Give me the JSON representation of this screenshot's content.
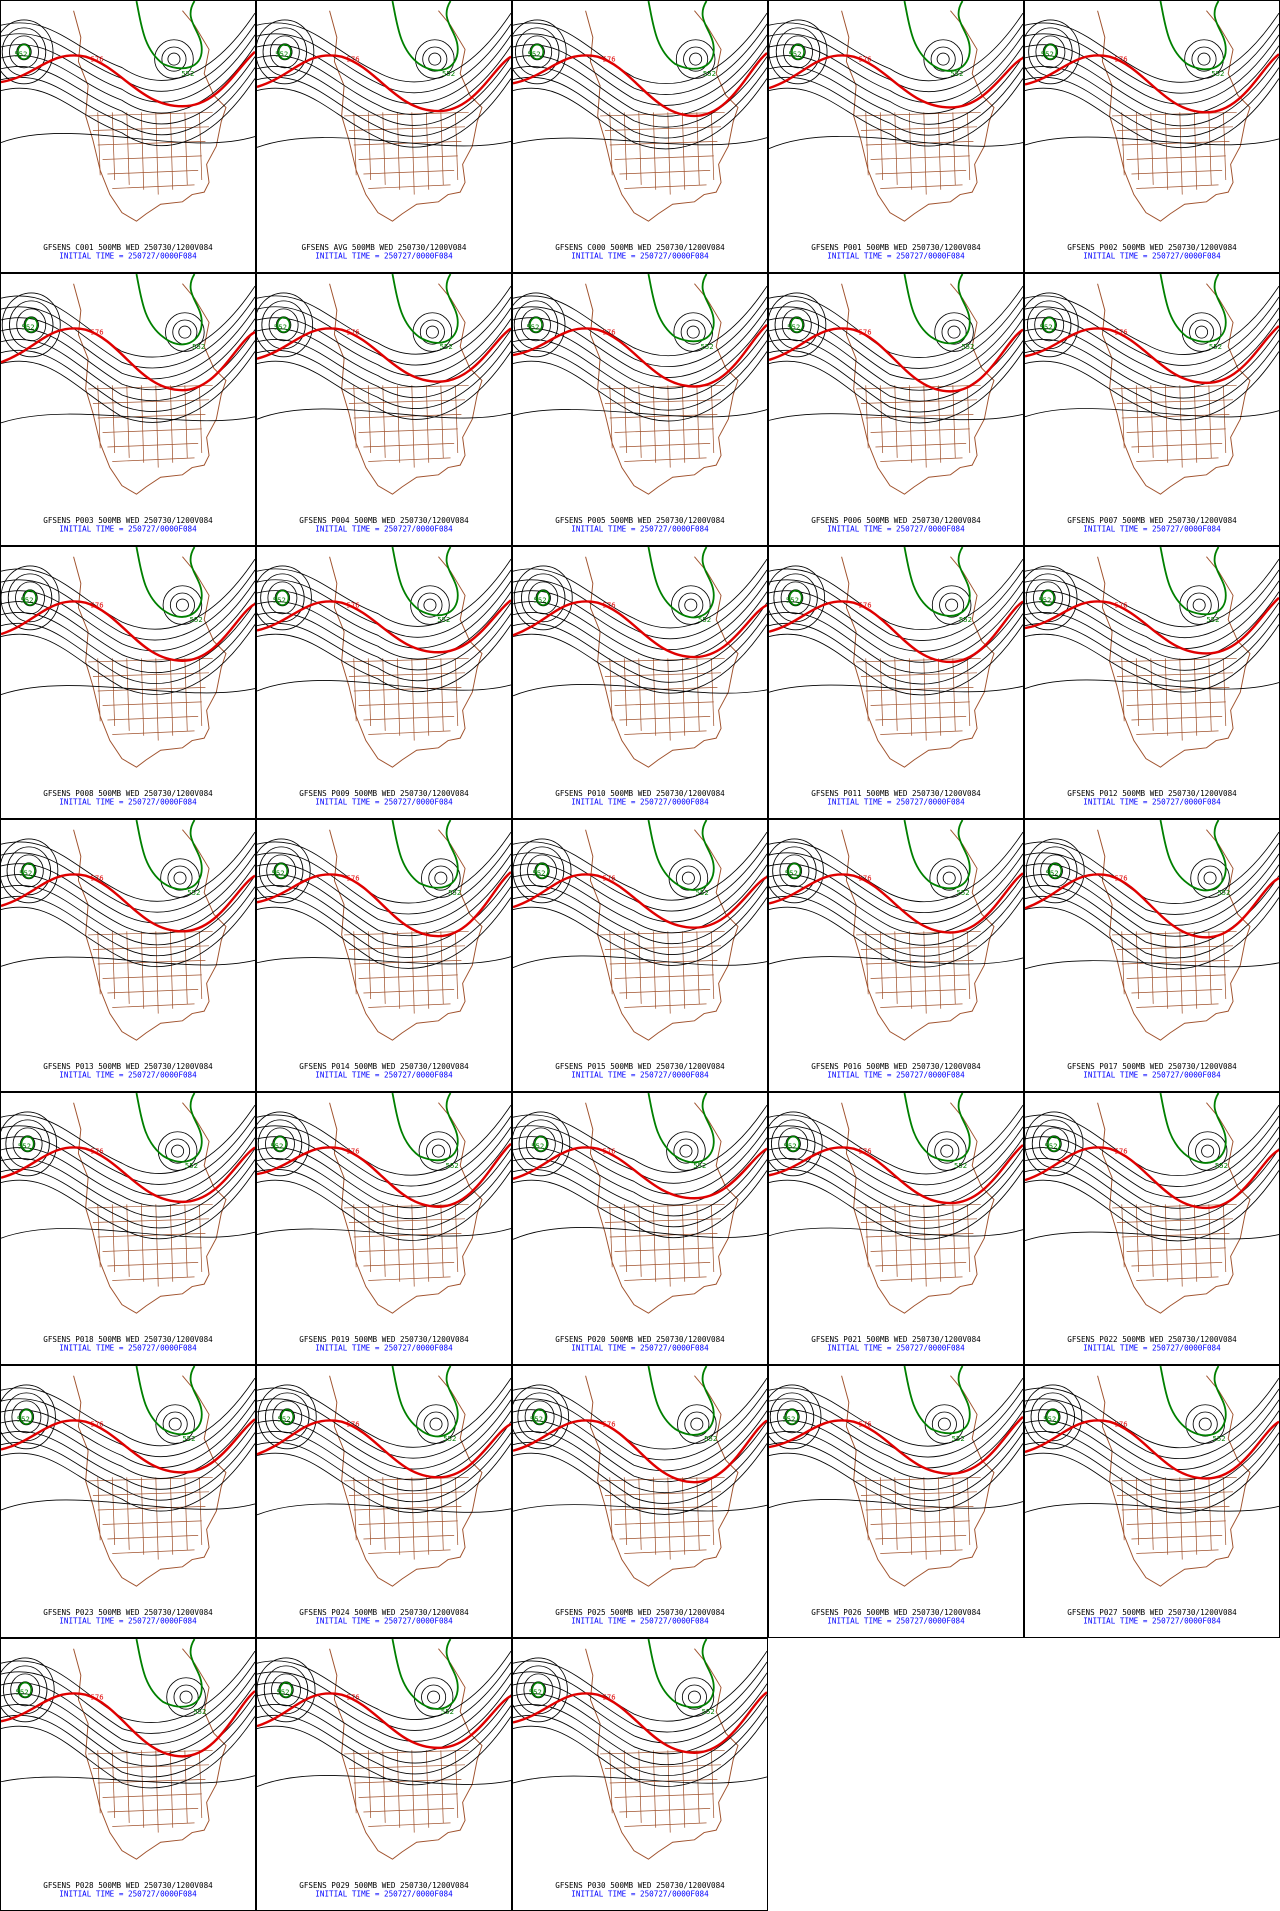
{
  "contour_labels": {
    "low": "552",
    "high": "576"
  },
  "panels": [
    {
      "title": "GFSENS C001 500MB WED 250730/1200V084",
      "init": "INITIAL TIME = 250727/0000F084"
    },
    {
      "title": "GFSENS AVG 500MB WED 250730/1200V084",
      "init": "INITIAL TIME = 250727/0000F084"
    },
    {
      "title": "GFSENS C000 500MB WED 250730/1200V084",
      "init": "INITIAL TIME = 250727/0000F084"
    },
    {
      "title": "GFSENS P001 500MB WED 250730/1200V084",
      "init": "INITIAL TIME = 250727/0000F084"
    },
    {
      "title": "GFSENS P002 500MB WED 250730/1200V084",
      "init": "INITIAL TIME = 250727/0000F084"
    },
    {
      "title": "GFSENS P003 500MB WED 250730/1200V084",
      "init": "INITIAL TIME = 250727/0000F084"
    },
    {
      "title": "GFSENS P004 500MB WED 250730/1200V084",
      "init": "INITIAL TIME = 250727/0000F084"
    },
    {
      "title": "GFSENS P005 500MB WED 250730/1200V084",
      "init": "INITIAL TIME = 250727/0000F084"
    },
    {
      "title": "GFSENS P006 500MB WED 250730/1200V084",
      "init": "INITIAL TIME = 250727/0000F084"
    },
    {
      "title": "GFSENS P007 500MB WED 250730/1200V084",
      "init": "INITIAL TIME = 250727/0000F084"
    },
    {
      "title": "GFSENS P008 500MB WED 250730/1200V084",
      "init": "INITIAL TIME = 250727/0000F084"
    },
    {
      "title": "GFSENS P009 500MB WED 250730/1200V084",
      "init": "INITIAL TIME = 250727/0000F084"
    },
    {
      "title": "GFSENS P010 500MB WED 250730/1200V084",
      "init": "INITIAL TIME = 250727/0000F084"
    },
    {
      "title": "GFSENS P011 500MB WED 250730/1200V084",
      "init": "INITIAL TIME = 250727/0000F084"
    },
    {
      "title": "GFSENS P012 500MB WED 250730/1200V084",
      "init": "INITIAL TIME = 250727/0000F084"
    },
    {
      "title": "GFSENS P013 500MB WED 250730/1200V084",
      "init": "INITIAL TIME = 250727/0000F084"
    },
    {
      "title": "GFSENS P014 500MB WED 250730/1200V084",
      "init": "INITIAL TIME = 250727/0000F084"
    },
    {
      "title": "GFSENS P015 500MB WED 250730/1200V084",
      "init": "INITIAL TIME = 250727/0000F084"
    },
    {
      "title": "GFSENS P016 500MB WED 250730/1200V084",
      "init": "INITIAL TIME = 250727/0000F084"
    },
    {
      "title": "GFSENS P017 500MB WED 250730/1200V084",
      "init": "INITIAL TIME = 250727/0000F084"
    },
    {
      "title": "GFSENS P018 500MB WED 250730/1200V084",
      "init": "INITIAL TIME = 250727/0000F084"
    },
    {
      "title": "GFSENS P019 500MB WED 250730/1200V084",
      "init": "INITIAL TIME = 250727/0000F084"
    },
    {
      "title": "GFSENS P020 500MB WED 250730/1200V084",
      "init": "INITIAL TIME = 250727/0000F084"
    },
    {
      "title": "GFSENS P021 500MB WED 250730/1200V084",
      "init": "INITIAL TIME = 250727/0000F084"
    },
    {
      "title": "GFSENS P022 500MB WED 250730/1200V084",
      "init": "INITIAL TIME = 250727/0000F084"
    },
    {
      "title": "GFSENS P023 500MB WED 250730/1200V084",
      "init": "INITIAL TIME = 250727/0000F084"
    },
    {
      "title": "GFSENS P024 500MB WED 250730/1200V084",
      "init": "INITIAL TIME = 250727/0000F084"
    },
    {
      "title": "GFSENS P025 500MB WED 250730/1200V084",
      "init": "INITIAL TIME = 250727/0000F084"
    },
    {
      "title": "GFSENS P026 500MB WED 250730/1200V084",
      "init": "INITIAL TIME = 250727/0000F084"
    },
    {
      "title": "GFSENS P027 500MB WED 250730/1200V084",
      "init": "INITIAL TIME = 250727/0000F084"
    },
    {
      "title": "GFSENS P028 500MB WED 250730/1200V084",
      "init": "INITIAL TIME = 250727/0000F084"
    },
    {
      "title": "GFSENS P029 500MB WED 250730/1200V084",
      "init": "INITIAL TIME = 250727/0000F084"
    },
    {
      "title": "GFSENS P030 500MB WED 250730/1200V084",
      "init": "INITIAL TIME = 250727/0000F084"
    }
  ]
}
